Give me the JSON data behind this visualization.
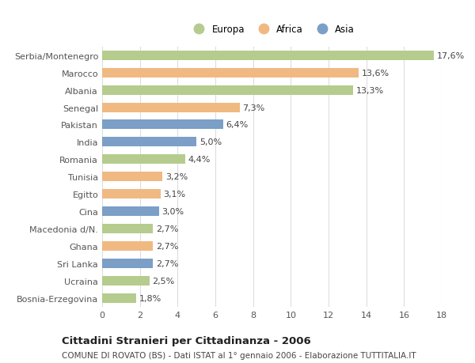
{
  "countries": [
    "Serbia/Montenegro",
    "Marocco",
    "Albania",
    "Senegal",
    "Pakistan",
    "India",
    "Romania",
    "Tunisia",
    "Egitto",
    "Cina",
    "Macedonia d/N.",
    "Ghana",
    "Sri Lanka",
    "Ucraina",
    "Bosnia-Erzegovina"
  ],
  "values": [
    17.6,
    13.6,
    13.3,
    7.3,
    6.4,
    5.0,
    4.4,
    3.2,
    3.1,
    3.0,
    2.7,
    2.7,
    2.7,
    2.5,
    1.8
  ],
  "labels": [
    "17,6%",
    "13,6%",
    "13,3%",
    "7,3%",
    "6,4%",
    "5,0%",
    "4,4%",
    "3,2%",
    "3,1%",
    "3,0%",
    "2,7%",
    "2,7%",
    "2,7%",
    "2,5%",
    "1,8%"
  ],
  "continents": [
    "Europa",
    "Africa",
    "Europa",
    "Africa",
    "Asia",
    "Asia",
    "Europa",
    "Africa",
    "Africa",
    "Asia",
    "Europa",
    "Africa",
    "Asia",
    "Europa",
    "Europa"
  ],
  "colors": {
    "Europa": "#b5cc8e",
    "Africa": "#f0b982",
    "Asia": "#7b9fc7"
  },
  "legend_labels": [
    "Europa",
    "Africa",
    "Asia"
  ],
  "title": "Cittadini Stranieri per Cittadinanza - 2006",
  "subtitle": "COMUNE DI ROVATO (BS) - Dati ISTAT al 1° gennaio 2006 - Elaborazione TUTTITALIA.IT",
  "xlim": [
    0,
    18
  ],
  "xticks": [
    0,
    2,
    4,
    6,
    8,
    10,
    12,
    14,
    16,
    18
  ],
  "bg_color": "#ffffff",
  "grid_color": "#dddddd",
  "bar_height": 0.55,
  "title_fontsize": 9.5,
  "subtitle_fontsize": 7.5,
  "tick_fontsize": 8,
  "label_fontsize": 8,
  "legend_fontsize": 8.5
}
